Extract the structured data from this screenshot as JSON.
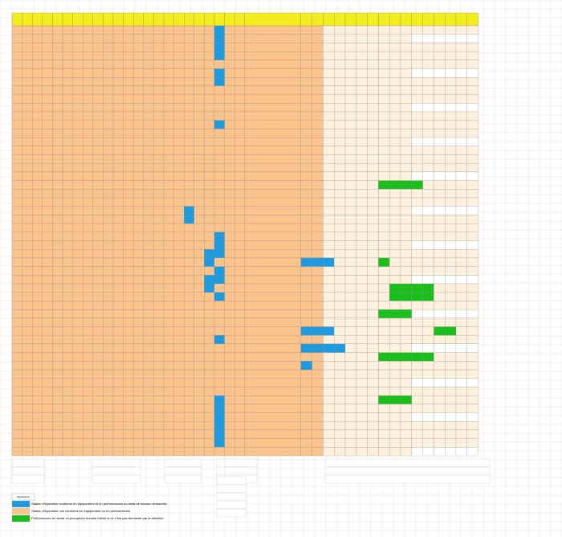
{
  "legend": {
    "title": "Signification",
    "items": [
      {
        "text": "Station d'épuration conforme en équipement et en performances au delai de travaux demandés"
      },
      {
        "text": "Station d'épuration non conforme en équipement ou en performances"
      },
      {
        "text": "Performances en azote ou phosphore bonnes même si ce n'est pas demandé par la directive"
      }
    ]
  }
}
